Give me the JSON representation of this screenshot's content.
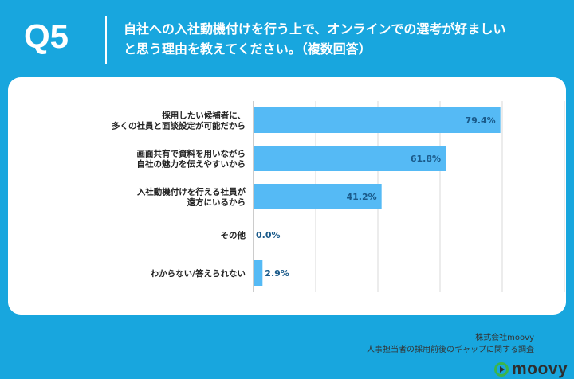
{
  "header": {
    "q_label": "Q5",
    "question_line1": "自社への入社動機付けを行う上で、オンラインでの選考が好ましい",
    "question_line2": "と思う理由を教えてください。（複数回答）"
  },
  "chart_data": {
    "type": "bar",
    "orientation": "horizontal",
    "categories": [
      [
        "採用したい候補者に、",
        "多くの社員と面談設定が可能だから"
      ],
      [
        "画面共有で資料を用いながら",
        "自社の魅力を伝えやすいから"
      ],
      [
        "入社動機付けを行える社員が",
        "遠方にいるから"
      ],
      [
        "その他"
      ],
      [
        "わからない/答えられない"
      ]
    ],
    "values": [
      79.4,
      61.8,
      41.2,
      0.0,
      2.9
    ],
    "value_labels": [
      "79.4%",
      "61.8%",
      "41.2%",
      "0.0%",
      "2.9%"
    ],
    "xlim": [
      0,
      100
    ],
    "grid": true,
    "bar_color": "#55baf5",
    "label_color": "#1a5a8a"
  },
  "footer": {
    "company": "株式会社moovy",
    "survey": "人事担当者の採用前後のギャップに関する調査"
  },
  "brand": {
    "name": "moovy",
    "icon": "play-circle-icon",
    "accent": "#3bb54a"
  },
  "colors": {
    "background": "#18a6de",
    "card": "#ffffff"
  }
}
